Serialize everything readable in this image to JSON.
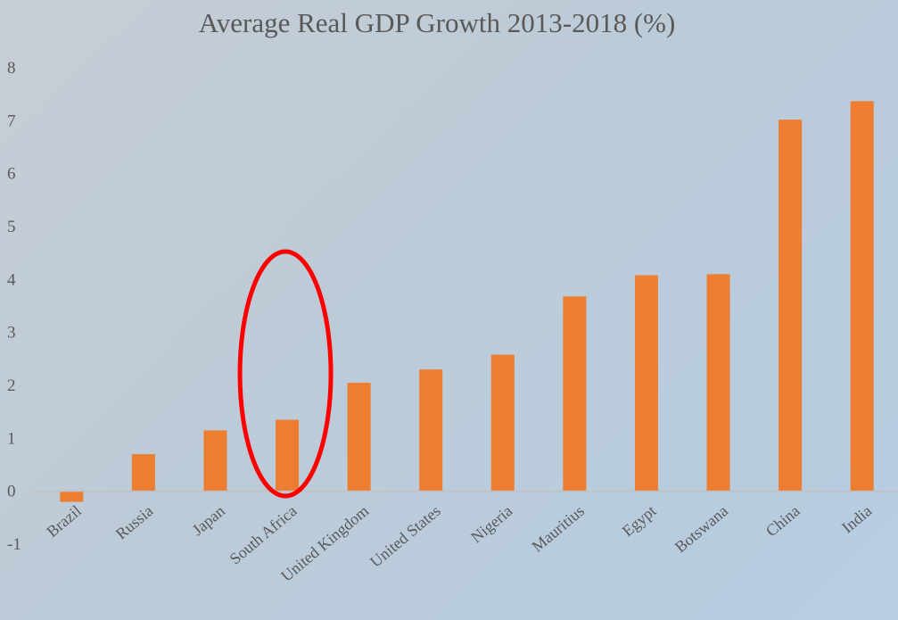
{
  "chart_data": {
    "type": "bar",
    "title": "Average Real GDP Growth 2013-2018 (%)",
    "xlabel": "",
    "ylabel": "",
    "categories": [
      "Brazil",
      "Russia",
      "Japan",
      "South Africa",
      "United Kingdom",
      "United States",
      "Nigeria",
      "Mauritius",
      "Egypt",
      "Botswana",
      "China",
      "India"
    ],
    "values": [
      -0.2,
      0.7,
      1.15,
      1.35,
      2.05,
      2.3,
      2.58,
      3.68,
      4.08,
      4.1,
      7.02,
      7.37
    ],
    "y_ticks": [
      "8",
      "7",
      "6",
      "5",
      "4",
      "3",
      "2",
      "1",
      "0",
      "-1"
    ],
    "ylim": [
      -1,
      8
    ],
    "grid": false,
    "legend": "none",
    "highlight": {
      "category": "South Africa",
      "shape": "ellipse",
      "color": "#ff0000"
    },
    "colors": {
      "bar": "#ed7d31",
      "axis": "#bfbfbf",
      "text": "#595959"
    }
  }
}
